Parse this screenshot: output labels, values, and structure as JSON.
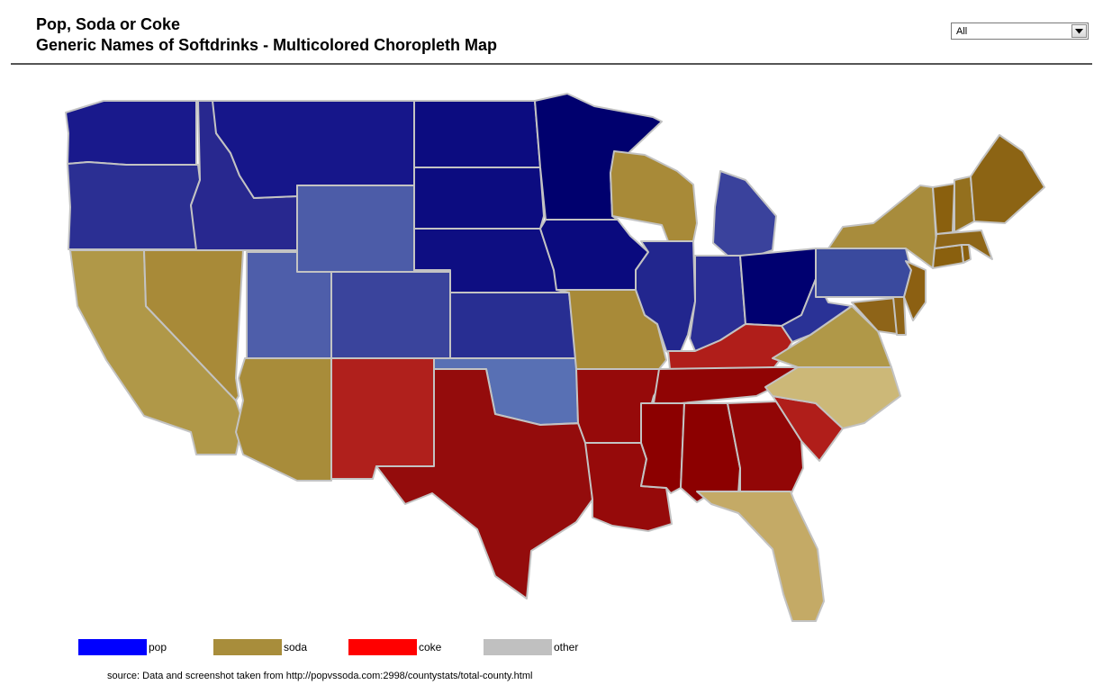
{
  "title": "Pop, Soda or Coke",
  "subtitle": "Generic Names of Softdrinks - Multicolored Choropleth Map",
  "filter": {
    "selected": "All",
    "icon": "chevron-down-icon"
  },
  "legend": [
    {
      "key": "pop",
      "label": "pop",
      "color": "#0000ff"
    },
    {
      "key": "soda",
      "label": "soda",
      "color": "#a88d3b"
    },
    {
      "key": "coke",
      "label": "coke",
      "color": "#ff0000"
    },
    {
      "key": "other",
      "label": "other",
      "color": "#c0c0c0"
    }
  ],
  "source": "source:  Data and screenshot taken from http://popvssoda.com:2998/countystats/total-county.html",
  "map_data": {
    "regions": [
      {
        "name": "Washington",
        "category": "pop",
        "color": "#19198c"
      },
      {
        "name": "Oregon",
        "category": "pop",
        "color": "#2b2f93"
      },
      {
        "name": "California",
        "category": "soda",
        "color": "#b09848"
      },
      {
        "name": "Nevada",
        "category": "soda",
        "color": "#a88a38"
      },
      {
        "name": "Idaho",
        "category": "pop",
        "color": "#28288f"
      },
      {
        "name": "Montana",
        "category": "pop",
        "color": "#16168a"
      },
      {
        "name": "Wyoming",
        "category": "pop",
        "color": "#4c5ca8"
      },
      {
        "name": "Utah",
        "category": "pop",
        "color": "#4e5eaa"
      },
      {
        "name": "Arizona",
        "category": "soda",
        "color": "#a88c3a"
      },
      {
        "name": "Colorado",
        "category": "pop",
        "color": "#3a449c"
      },
      {
        "name": "New Mexico",
        "category": "coke",
        "color": "#b0201c"
      },
      {
        "name": "North Dakota",
        "category": "pop",
        "color": "#0c0c80"
      },
      {
        "name": "South Dakota",
        "category": "pop",
        "color": "#0c0c80"
      },
      {
        "name": "Nebraska",
        "category": "pop",
        "color": "#0e0e82"
      },
      {
        "name": "Kansas",
        "category": "pop",
        "color": "#282e92"
      },
      {
        "name": "Oklahoma",
        "category": "pop",
        "color": "#5870b4"
      },
      {
        "name": "Texas",
        "category": "coke",
        "color": "#940c0c"
      },
      {
        "name": "Minnesota",
        "category": "pop",
        "color": "#00006e"
      },
      {
        "name": "Iowa",
        "category": "pop",
        "color": "#0a0a7e"
      },
      {
        "name": "Missouri",
        "category": "soda",
        "color": "#a88a38"
      },
      {
        "name": "Arkansas",
        "category": "coke",
        "color": "#960a0a"
      },
      {
        "name": "Louisiana",
        "category": "coke",
        "color": "#960a0a"
      },
      {
        "name": "Wisconsin",
        "category": "soda",
        "color": "#a88a38"
      },
      {
        "name": "Illinois",
        "category": "pop",
        "color": "#22268e"
      },
      {
        "name": "Michigan",
        "category": "pop",
        "color": "#3a429c"
      },
      {
        "name": "Indiana",
        "category": "pop",
        "color": "#2a2e94"
      },
      {
        "name": "Ohio",
        "category": "pop",
        "color": "#000070"
      },
      {
        "name": "Kentucky",
        "category": "coke",
        "color": "#b01e1a"
      },
      {
        "name": "Tennessee",
        "category": "coke",
        "color": "#900404"
      },
      {
        "name": "Mississippi",
        "category": "coke",
        "color": "#8c0000"
      },
      {
        "name": "Alabama",
        "category": "coke",
        "color": "#8c0000"
      },
      {
        "name": "Georgia",
        "category": "coke",
        "color": "#920606"
      },
      {
        "name": "Florida",
        "category": "soda",
        "color": "#c4aa66"
      },
      {
        "name": "South Carolina",
        "category": "coke",
        "color": "#b01e1a"
      },
      {
        "name": "North Carolina",
        "category": "soda",
        "color": "#ccb878"
      },
      {
        "name": "Virginia",
        "category": "soda",
        "color": "#b09848"
      },
      {
        "name": "West Virginia",
        "category": "pop",
        "color": "#2a3296"
      },
      {
        "name": "Pennsylvania",
        "category": "pop",
        "color": "#3a4a9e"
      },
      {
        "name": "New York",
        "category": "soda",
        "color": "#a88c3c"
      },
      {
        "name": "Maryland",
        "category": "soda",
        "color": "#8e6418"
      },
      {
        "name": "Delaware",
        "category": "soda",
        "color": "#8e6418"
      },
      {
        "name": "New Jersey",
        "category": "soda",
        "color": "#8c6012"
      },
      {
        "name": "Connecticut",
        "category": "soda",
        "color": "#8a600e"
      },
      {
        "name": "Rhode Island",
        "category": "soda",
        "color": "#8a600e"
      },
      {
        "name": "Massachusetts",
        "category": "soda",
        "color": "#8e6618"
      },
      {
        "name": "Vermont",
        "category": "soda",
        "color": "#8a600e"
      },
      {
        "name": "New Hampshire",
        "category": "soda",
        "color": "#94701e"
      },
      {
        "name": "Maine",
        "category": "soda",
        "color": "#8c6414"
      }
    ]
  }
}
